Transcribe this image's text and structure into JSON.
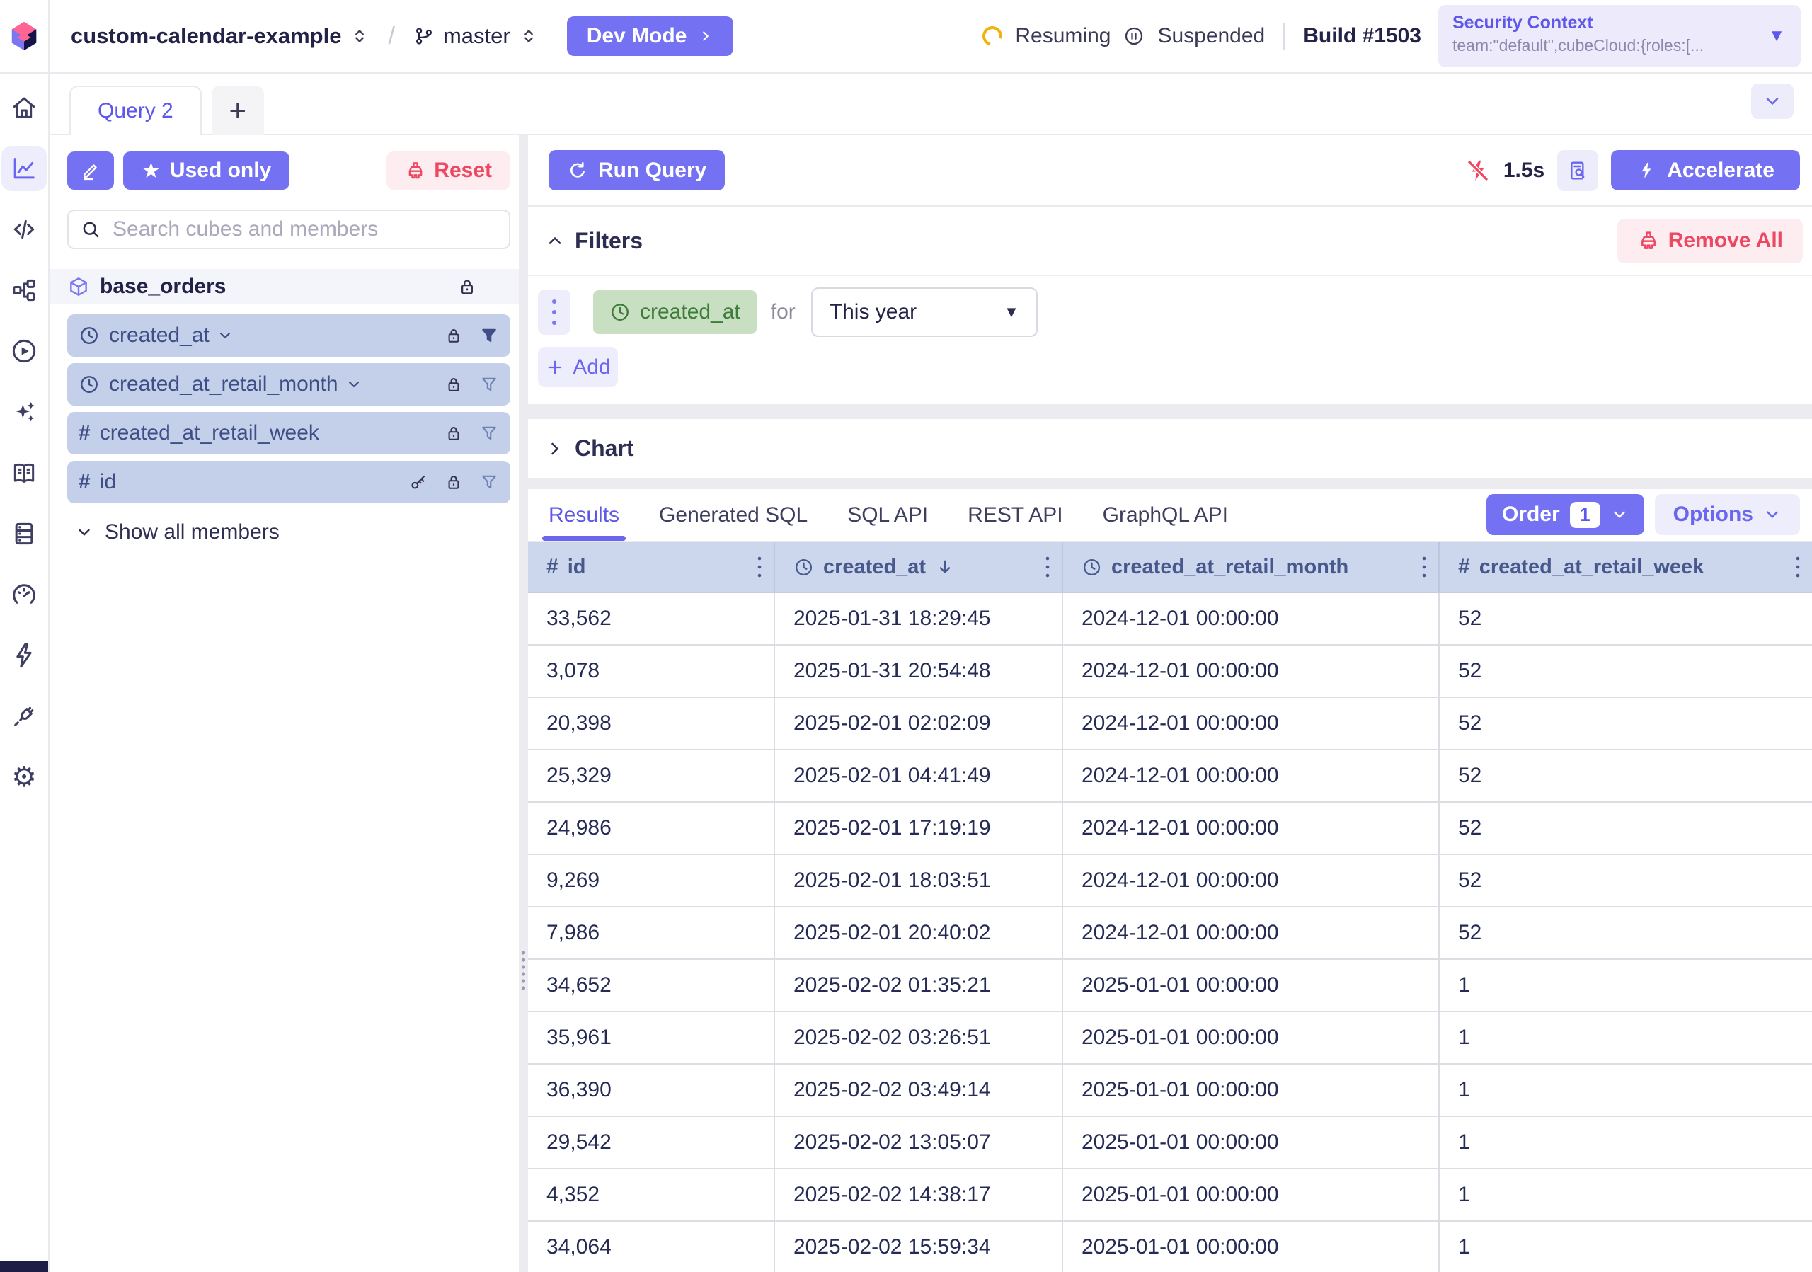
{
  "header": {
    "project": "custom-calendar-example",
    "path_separator": "/",
    "branch": "master",
    "dev_mode": "Dev Mode",
    "resuming": "Resuming",
    "suspended": "Suspended",
    "build": "Build #1503",
    "security_context_title": "Security Context",
    "security_context_value": "team:\"default\",cubeCloud:{roles:[..."
  },
  "sidebar_icons": [
    "home",
    "chart",
    "code",
    "schema",
    "play",
    "ai-sparkles",
    "docs-book",
    "data-sources",
    "performance-gauge",
    "jobs-bolt",
    "integrations-plug",
    "settings-gear"
  ],
  "tabs": {
    "active": "Query 2",
    "add": "+"
  },
  "query_panel": {
    "used_only": "Used only",
    "reset": "Reset",
    "search_placeholder": "Search cubes and members",
    "cube": "base_orders",
    "members": [
      {
        "name": "created_at",
        "kind": "time",
        "expandable": true,
        "filter_active": true,
        "locked": true,
        "primary_key": false
      },
      {
        "name": "created_at_retail_month",
        "kind": "time",
        "expandable": true,
        "filter_active": false,
        "locked": true,
        "primary_key": false
      },
      {
        "name": "created_at_retail_week",
        "kind": "number",
        "expandable": false,
        "filter_active": false,
        "locked": true,
        "primary_key": false
      },
      {
        "name": "id",
        "kind": "number",
        "expandable": false,
        "filter_active": false,
        "locked": true,
        "primary_key": true
      }
    ],
    "show_all": "Show all members"
  },
  "toolbar": {
    "run_query": "Run Query",
    "duration": "1.5s",
    "accelerate": "Accelerate"
  },
  "filters": {
    "title": "Filters",
    "remove_all": "Remove All",
    "add": "Add",
    "rows": [
      {
        "member": "created_at",
        "operator": "for",
        "value": "This year"
      }
    ]
  },
  "chart": {
    "title": "Chart"
  },
  "results": {
    "tabs": [
      "Results",
      "Generated SQL",
      "SQL API",
      "REST API",
      "GraphQL API"
    ],
    "active_tab": "Results",
    "order": "Order",
    "order_count": "1",
    "options": "Options",
    "columns": [
      {
        "label": "id",
        "kind": "number",
        "sort": null
      },
      {
        "label": "created_at",
        "kind": "time",
        "sort": "desc"
      },
      {
        "label": "created_at_retail_month",
        "kind": "time",
        "sort": null
      },
      {
        "label": "created_at_retail_week",
        "kind": "number",
        "sort": null
      }
    ],
    "rows": [
      [
        "33,562",
        "2025-01-31 18:29:45",
        "2024-12-01 00:00:00",
        "52"
      ],
      [
        "3,078",
        "2025-01-31 20:54:48",
        "2024-12-01 00:00:00",
        "52"
      ],
      [
        "20,398",
        "2025-02-01 02:02:09",
        "2024-12-01 00:00:00",
        "52"
      ],
      [
        "25,329",
        "2025-02-01 04:41:49",
        "2024-12-01 00:00:00",
        "52"
      ],
      [
        "24,986",
        "2025-02-01 17:19:19",
        "2024-12-01 00:00:00",
        "52"
      ],
      [
        "9,269",
        "2025-02-01 18:03:51",
        "2024-12-01 00:00:00",
        "52"
      ],
      [
        "7,986",
        "2025-02-01 20:40:02",
        "2024-12-01 00:00:00",
        "52"
      ],
      [
        "34,652",
        "2025-02-02 01:35:21",
        "2025-01-01 00:00:00",
        "1"
      ],
      [
        "35,961",
        "2025-02-02 03:26:51",
        "2025-01-01 00:00:00",
        "1"
      ],
      [
        "36,390",
        "2025-02-02 03:49:14",
        "2025-01-01 00:00:00",
        "1"
      ],
      [
        "29,542",
        "2025-02-02 13:05:07",
        "2025-01-01 00:00:00",
        "1"
      ],
      [
        "4,352",
        "2025-02-02 14:38:17",
        "2025-01-01 00:00:00",
        "1"
      ],
      [
        "34,064",
        "2025-02-02 15:59:34",
        "2025-01-01 00:00:00",
        "1"
      ]
    ]
  },
  "colors": {
    "primary": "#7472f3",
    "accent_text": "#5d57ea",
    "danger": "#ee4761",
    "member_bg": "#c4cfe9",
    "table_header_bg": "#ccd6ec",
    "filter_chip_bg": "#c9dfc2",
    "filter_chip_text": "#3e7c3a",
    "spinner_yellow": "#eeb40a"
  }
}
